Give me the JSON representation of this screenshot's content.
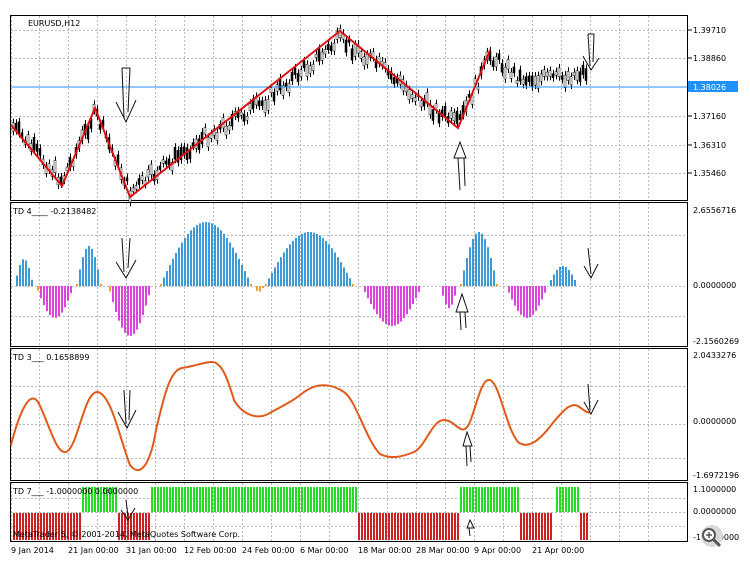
{
  "window": {
    "symbol_title": "EURUSD,H12",
    "copyright": "MetaTrader 5, © 2001-2014, MetaQuotes Software Corp."
  },
  "panels": {
    "price": {
      "axis_labels": [
        "1.39710",
        "1.38860",
        "1.37160",
        "1.36310",
        "1.35460"
      ],
      "current_price": "1.38026",
      "current_price_color": "#1e90ff"
    },
    "td4": {
      "title": "TD 4____ -0.2138482",
      "axis_labels": [
        "2.6556716",
        "0.0000000",
        "-2.1560269"
      ]
    },
    "td3": {
      "title": "TD 3___ 0.1658899",
      "axis_labels": [
        "2.0433276",
        "0.0000000",
        "-1.6972196"
      ]
    },
    "td7": {
      "title": "TD 7___ -1.0000000 0.0000000",
      "axis_labels": [
        "1.1000000",
        "0.0000000",
        "-1.1000000"
      ]
    }
  },
  "time_axis": [
    "9 Jan 2014",
    "21 Jan 00:00",
    "31 Jan 00:00",
    "12 Feb 00:00",
    "24 Feb 00:00",
    "6 Mar 00:00",
    "18 Mar 00:00",
    "28 Mar 00:00",
    "9 Apr 00:00",
    "21 Apr 00:00"
  ],
  "colors": {
    "zigzag": "#dd1111",
    "hist_pos": "#3c9ad6",
    "hist_neg": "#dd44dd",
    "hist_small": "#f0a030",
    "td3_line": "#e05a1a",
    "td7_up": "#22dd22",
    "td7_down": "#cc2222"
  },
  "icons": [
    "zoom-icon"
  ]
}
